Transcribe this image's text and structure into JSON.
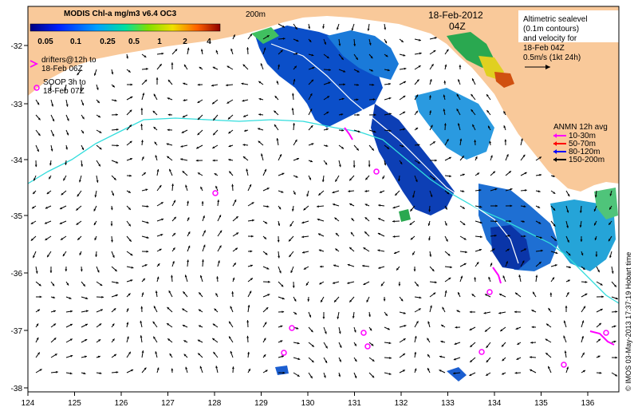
{
  "colorbar": {
    "title": "MODIS Chl-a mg/m3 v6.4 OC3",
    "ticks": [
      "0.05",
      "0.1",
      "0.25",
      "0.5",
      "1",
      "2",
      "4"
    ]
  },
  "isobath_label": "200m",
  "timestamp": {
    "date": "18-Feb-2012",
    "time": "04Z"
  },
  "altimetry_note": {
    "lines": [
      "Altimetric sealevel",
      "(0.1m contours)",
      "and velocity for",
      "18-Feb 04Z",
      "0.5m/s (1kt 24h)"
    ]
  },
  "drifter_legend": {
    "lines": [
      "drifters@12h to",
      "18-Feb 06Z"
    ]
  },
  "sodp_legend": {
    "lines": [
      "SOOP 3h to",
      "18-Feb 07Z"
    ]
  },
  "anmn_legend": {
    "title": "ANMN 12h avg",
    "items": [
      {
        "label": "10-30m",
        "color": "#ff00ff"
      },
      {
        "label": "50-70m",
        "color": "#ff0000"
      },
      {
        "label": "80-120m",
        "color": "#0000ff"
      },
      {
        "label": "150-200m",
        "color": "#000000"
      }
    ]
  },
  "credit": "© IMOS 03-May-2013 17:37:19 Hobart time",
  "axes": {
    "lon_ticks": [
      "124",
      "125",
      "126",
      "127",
      "128",
      "129",
      "130",
      "131",
      "132",
      "133",
      "134",
      "135",
      "136"
    ],
    "lat_ticks": [
      "-32",
      "-33",
      "-34",
      "-35",
      "-36",
      "-37",
      "-38"
    ]
  },
  "colors": {
    "land": "#f9c99a",
    "sea": "#ffffff",
    "isobath": "#33dddd",
    "marker": "#ff00ff"
  }
}
